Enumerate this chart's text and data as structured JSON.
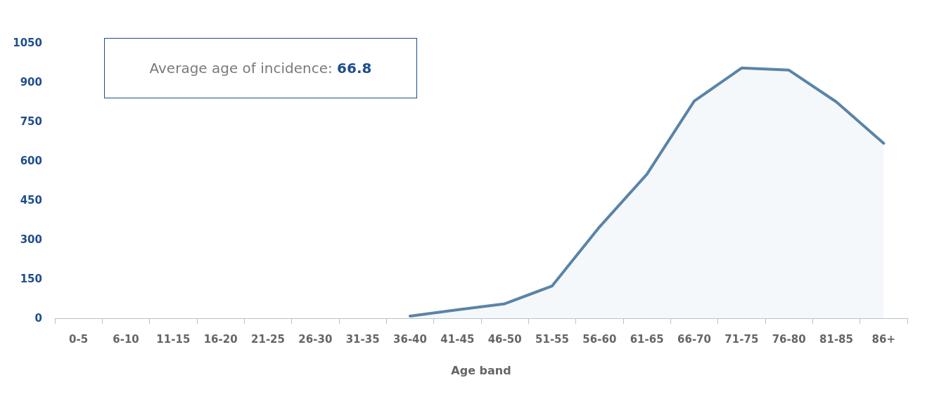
{
  "chart_data": {
    "type": "area",
    "xlabel": "Age band",
    "categories": [
      "0-5",
      "6-10",
      "11-15",
      "16-20",
      "21-25",
      "26-30",
      "31-35",
      "36-40",
      "41-45",
      "46-50",
      "51-55",
      "56-60",
      "61-65",
      "66-70",
      "71-75",
      "76-80",
      "81-85",
      "86+"
    ],
    "series": [
      {
        "color": "#5a84a8",
        "values": [
          null,
          null,
          null,
          null,
          null,
          null,
          null,
          8,
          32,
          55,
          123,
          348,
          549,
          828,
          954,
          946,
          825,
          667
        ]
      }
    ],
    "ylim": [
      0,
      1050
    ],
    "yticks": [
      0,
      150,
      300,
      450,
      600,
      750,
      900,
      1050
    ],
    "grid": false,
    "marker": "none",
    "line_style": "solid",
    "annotations": [
      "Average age of incidence: 66.8"
    ]
  }
}
